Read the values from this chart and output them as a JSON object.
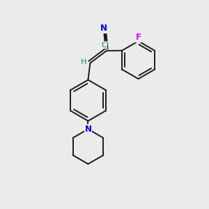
{
  "bg_color": "#ebebeb",
  "bond_color": "#1a1a1a",
  "N_color": "#0000ff",
  "F_color": "#e800e8",
  "C_color": "#1a8080",
  "H_color": "#1a8080",
  "bond_width": 1.4,
  "title": "",
  "xlim": [
    0,
    10
  ],
  "ylim": [
    0,
    10
  ]
}
